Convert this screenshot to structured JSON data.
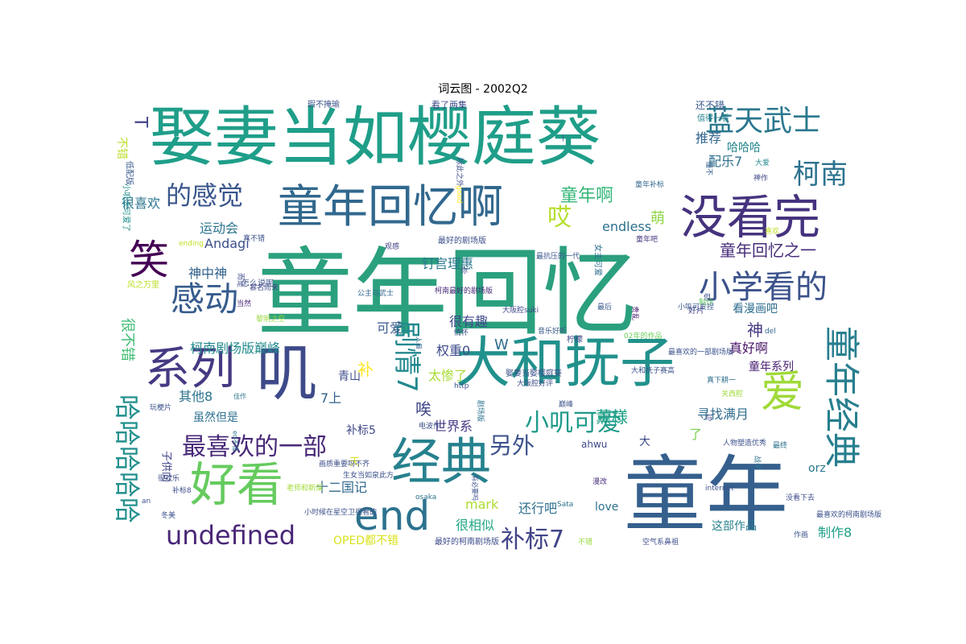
{
  "chart_data": {
    "type": "wordcloud",
    "title": "词云图 - 2002Q2",
    "words": [
      {
        "text": "童年回忆",
        "weight": 100,
        "color": "#2ba07e"
      },
      {
        "text": "娶妻当如樱庭葵",
        "weight": 78,
        "color": "#1f9e89"
      },
      {
        "text": "童年",
        "weight": 92,
        "color": "#355f8d"
      },
      {
        "text": "大和抚子",
        "weight": 64,
        "color": "#21918c"
      },
      {
        "text": "叽",
        "weight": 72,
        "color": "#3e4a89"
      },
      {
        "text": "经典",
        "weight": 58,
        "color": "#26818e"
      },
      {
        "text": "童年回忆啊",
        "weight": 54,
        "color": "#31688e"
      },
      {
        "text": "没看完",
        "weight": 52,
        "color": "#46337e"
      },
      {
        "text": "系列",
        "weight": 50,
        "color": "#443a83"
      },
      {
        "text": "好看",
        "weight": 50,
        "color": "#65cb5e"
      },
      {
        "text": "end",
        "weight": 44,
        "color": "#2c728e"
      },
      {
        "text": "笑",
        "weight": 48,
        "color": "#440154"
      },
      {
        "text": "爱",
        "weight": 50,
        "color": "#a0da39"
      },
      {
        "text": "童年经典",
        "weight": 44,
        "color": "#277f8e"
      },
      {
        "text": "感动",
        "weight": 38,
        "color": "#365c8d"
      },
      {
        "text": "小学看的",
        "weight": 36,
        "color": "#3b528b"
      },
      {
        "text": "蓝天武士",
        "weight": 32,
        "color": "#2a788e"
      },
      {
        "text": "柯南",
        "weight": 32,
        "color": "#2c728e"
      },
      {
        "text": "的感觉",
        "weight": 28,
        "color": "#39568c"
      },
      {
        "text": "undefined",
        "weight": 28,
        "color": "#482677"
      },
      {
        "text": "最喜欢的一部",
        "weight": 28,
        "color": "#482878"
      },
      {
        "text": "小叽可爱",
        "weight": 26,
        "color": "#1f9a8a"
      },
      {
        "text": "剧情7",
        "weight": 30,
        "color": "#23898e"
      },
      {
        "text": "哈哈哈哈哈",
        "weight": 28,
        "color": "#21908d"
      },
      {
        "text": "补标7",
        "weight": 28,
        "color": "#414487"
      },
      {
        "text": "另外",
        "weight": 24,
        "color": "#3b518b"
      },
      {
        "text": "哎",
        "weight": 26,
        "color": "#b5de2b"
      },
      {
        "text": "童年啊",
        "weight": 20,
        "color": "#35b779"
      },
      {
        "text": "童年回忆之一",
        "weight": 18,
        "color": "#472c7a"
      },
      {
        "text": "萌",
        "weight": 18,
        "color": "#8ed645"
      },
      {
        "text": "endless",
        "weight": 14,
        "color": "#2d718e"
      },
      {
        "text": "运动会",
        "weight": 14,
        "color": "#2c738e"
      },
      {
        "text": "Andagi",
        "weight": 14,
        "color": "#3c4f8a"
      },
      {
        "text": "钉宫理惠",
        "weight": 14,
        "color": "#2a778e"
      },
      {
        "text": "神中神",
        "weight": 14,
        "color": "#33628d"
      },
      {
        "text": "很不错",
        "weight": 16,
        "color": "#3fbc73"
      },
      {
        "text": "柯南剧场版巅峰",
        "weight": 14,
        "color": "#238a8d"
      },
      {
        "text": "可爱",
        "weight": 14,
        "color": "#38598c"
      },
      {
        "text": "很有趣",
        "weight": 14,
        "color": "#3f4889"
      },
      {
        "text": "权重0",
        "weight": 14,
        "color": "#3d4d8a"
      },
      {
        "text": "W",
        "weight": 16,
        "color": "#2f6b8e"
      },
      {
        "text": "神",
        "weight": 18,
        "color": "#453781"
      },
      {
        "text": "真好啊",
        "weight": 14,
        "color": "#481467"
      },
      {
        "text": "看漫画吧",
        "weight": 12,
        "color": "#2e6d8e"
      },
      {
        "text": "补",
        "weight": 18,
        "color": "#fde725"
      },
      {
        "text": "青山",
        "weight": 12,
        "color": "#3d4e8a"
      },
      {
        "text": "太惨了",
        "weight": 14,
        "color": "#a8db34"
      },
      {
        "text": "唉",
        "weight": 18,
        "color": "#404588"
      },
      {
        "text": "7上",
        "weight": 14,
        "color": "#33638d"
      },
      {
        "text": "其他8",
        "weight": 14,
        "color": "#2c738e"
      },
      {
        "text": "薰様",
        "weight": 18,
        "color": "#1fa187"
      },
      {
        "text": "童年系列",
        "weight": 12,
        "color": "#482173"
      },
      {
        "text": "寻找满月",
        "weight": 14,
        "color": "#2f6c8e"
      },
      {
        "text": "了",
        "weight": 14,
        "color": "#7ad151"
      },
      {
        "text": "世界系",
        "weight": 14,
        "color": "#443983"
      },
      {
        "text": "补标5",
        "weight": 12,
        "color": "#3e4989"
      },
      {
        "text": "虽然但是",
        "weight": 12,
        "color": "#2d708e"
      },
      {
        "text": "十二国记",
        "weight": 14,
        "color": "#31688e"
      },
      {
        "text": "mark",
        "weight": 14,
        "color": "#addc30"
      },
      {
        "text": "还行吧",
        "weight": 14,
        "color": "#2e6f8e"
      },
      {
        "text": "love",
        "weight": 12,
        "color": "#2d718e"
      },
      {
        "text": "orz",
        "weight": 12,
        "color": "#2a788e"
      },
      {
        "text": "很相似",
        "weight": 14,
        "color": "#22a785"
      },
      {
        "text": "这部作品",
        "weight": 12,
        "color": "#27808e"
      },
      {
        "text": "制作8",
        "weight": 14,
        "color": "#1fa088"
      },
      {
        "text": "OPED都不错",
        "weight": 12,
        "color": "#d8e219"
      },
      {
        "text": "配乐7",
        "weight": 14,
        "color": "#2d718e"
      },
      {
        "text": "推荐",
        "weight": 14,
        "color": "#32658e"
      },
      {
        "text": "哈哈哈",
        "weight": 12,
        "color": "#24868e"
      },
      {
        "text": "T",
        "weight": 20,
        "color": "#414487"
      },
      {
        "text": "很喜欢",
        "weight": 12,
        "color": "#2a768e"
      },
      {
        "text": "不错",
        "weight": 12,
        "color": "#b8de29"
      },
      {
        "text": "子供向",
        "weight": 11,
        "color": "#414487"
      },
      {
        "text": "天",
        "weight": 11,
        "color": "#d0e11c"
      },
      {
        "text": "还不错",
        "weight": 9,
        "color": "#38588c"
      },
      {
        "text": "看了两集",
        "weight": 8,
        "color": "#3e4a89"
      },
      {
        "text": "瑕不掩瑜",
        "weight": 8,
        "color": "#3b528b"
      },
      {
        "text": "值得一看",
        "weight": 8,
        "color": "#25848e"
      },
      {
        "text": "懂不",
        "weight": 7,
        "color": "#34608d"
      },
      {
        "text": "神作",
        "weight": 7,
        "color": "#3f4788"
      },
      {
        "text": "大爱",
        "weight": 7,
        "color": "#23898e"
      },
      {
        "text": "童年补标",
        "weight": 7,
        "color": "#31678e"
      },
      {
        "text": "小叽太可爱了",
        "weight": 7,
        "color": "#21908d"
      },
      {
        "text": "低配版",
        "weight": 7,
        "color": "#38598c"
      },
      {
        "text": "good",
        "weight": 7,
        "color": "#fde725"
      },
      {
        "text": "喜欢",
        "weight": 7,
        "color": "#bddf26"
      },
      {
        "text": "真不错",
        "weight": 8,
        "color": "#3c508b"
      },
      {
        "text": "怎么说呢",
        "weight": 8,
        "color": "#3b518b"
      },
      {
        "text": "观感",
        "weight": 8,
        "color": "#414487"
      },
      {
        "text": "童年吧",
        "weight": 8,
        "color": "#46327e"
      },
      {
        "text": "最好的柯南剧场版",
        "weight": 8,
        "color": "#3e4c8a"
      },
      {
        "text": "最好的剧场版",
        "weight": 8,
        "color": "#3c4f8a"
      },
      {
        "text": "最抗压的一代",
        "weight": 8,
        "color": "#3a538b"
      },
      {
        "text": "女主可爱",
        "weight": 8,
        "color": "#2e6f8e"
      },
      {
        "text": "柯南最好的剧场版",
        "weight": 8,
        "color": "#482979"
      },
      {
        "text": "公主与武士",
        "weight": 8,
        "color": "#31668e"
      },
      {
        "text": "慕名而来",
        "weight": 8,
        "color": "#3f4889"
      },
      {
        "text": "当然",
        "weight": 8,
        "color": "#482475"
      },
      {
        "text": "风之万里",
        "weight": 8,
        "color": "#bade28"
      },
      {
        "text": "ending",
        "weight": 8,
        "color": "#c2df23"
      },
      {
        "text": "最后",
        "weight": 7,
        "color": "#38588c"
      },
      {
        "text": "贵乱",
        "weight": 8,
        "color": "#481b6d"
      },
      {
        "text": "小叽可爱捏",
        "weight": 7,
        "color": "#38588c"
      },
      {
        "text": "制作",
        "weight": 8,
        "color": "#5ec962"
      },
      {
        "text": "好片",
        "weight": 8,
        "color": "#414487"
      },
      {
        "text": "del",
        "weight": 8,
        "color": "#31688e"
      },
      {
        "text": "02年的作品",
        "weight": 7,
        "color": "#6ccd5a"
      },
      {
        "text": "最喜欢的一部剧场版",
        "weight": 7,
        "color": "#3b528b"
      },
      {
        "text": "柠檬",
        "weight": 7,
        "color": "#3f4788"
      },
      {
        "text": "音乐好听",
        "weight": 8,
        "color": "#38598c"
      },
      {
        "text": "大阪腔suki",
        "weight": 8,
        "color": "#3f4889"
      },
      {
        "text": "娶妻当娶樱庭葵",
        "weight": 8,
        "color": "#3b528b"
      },
      {
        "text": "情怀",
        "weight": 8,
        "color": "#3d4e8a"
      },
      {
        "text": "人兽",
        "weight": 7,
        "color": "#33638d"
      },
      {
        "text": "大和抚子赛高",
        "weight": 7,
        "color": "#3a538b"
      },
      {
        "text": "真下耕一",
        "weight": 8,
        "color": "#2e6e8e"
      },
      {
        "text": "关西腔",
        "weight": 8,
        "color": "#9fda3a"
      },
      {
        "text": "巅峰",
        "weight": 7,
        "color": "#3b528b"
      },
      {
        "text": "大阪腔好评",
        "weight": 8,
        "color": "#3d4e8a"
      },
      {
        "text": "http",
        "weight": 7,
        "color": "#3a548c"
      },
      {
        "text": "剧场版",
        "weight": 7,
        "color": "#2c728e"
      },
      {
        "text": "与",
        "weight": 7,
        "color": "#424086"
      },
      {
        "text": "人物塑造优秀",
        "weight": 8,
        "color": "#3b528b"
      },
      {
        "text": "最终",
        "weight": 8,
        "color": "#2d708e"
      },
      {
        "text": "战争",
        "weight": 7,
        "color": "#2c738e"
      },
      {
        "text": "漫改",
        "weight": 7,
        "color": "#472f7d"
      },
      {
        "text": "电波作",
        "weight": 8,
        "color": "#3c4f8a"
      },
      {
        "text": "老师和新保",
        "weight": 7,
        "color": "#a2da37"
      },
      {
        "text": "生女当如泉此方",
        "weight": 8,
        "color": "#3b528b"
      },
      {
        "text": "有必要吗",
        "weight": 8,
        "color": "#3c508b"
      },
      {
        "text": "画质重要吗不齐",
        "weight": 7,
        "color": "#3d4e8a"
      },
      {
        "text": "osaka",
        "weight": 7,
        "color": "#2c728e"
      },
      {
        "text": "Sata",
        "weight": 7,
        "color": "#2c728e"
      },
      {
        "text": "internet",
        "weight": 8,
        "color": "#3b528b"
      },
      {
        "text": "没看下去",
        "weight": 8,
        "color": "#3e4a89"
      },
      {
        "text": "最喜欢的柯南剧场版",
        "weight": 8,
        "color": "#3b528b"
      },
      {
        "text": "作画",
        "weight": 8,
        "color": "#3a538b"
      },
      {
        "text": "不错",
        "weight": 7,
        "color": "#9bd93c"
      },
      {
        "text": "空气系鼻祖",
        "weight": 8,
        "color": "#3d4e8a"
      },
      {
        "text": "小时候在星空卫视看的",
        "weight": 8,
        "color": "#3b528b"
      },
      {
        "text": "很欢乐",
        "weight": 8,
        "color": "#3d4e8a"
      },
      {
        "text": "玩梗片",
        "weight": 8,
        "color": "#3b528b"
      },
      {
        "text": "佳作",
        "weight": 8,
        "color": "#2a788e"
      },
      {
        "text": "补标8",
        "weight": 7,
        "color": "#3d4e8a"
      },
      {
        "text": "an",
        "weight": 7,
        "color": "#3b528b"
      },
      {
        "text": "冬美",
        "weight": 8,
        "color": "#3b528b"
      },
      {
        "text": "黎明之空",
        "weight": 7,
        "color": "#9bd93c"
      },
      {
        "text": "你",
        "weight": 7,
        "color": "#3e4a89"
      },
      {
        "text": "除此之外",
        "weight": 8,
        "color": "#3b528b"
      },
      {
        "text": "而是",
        "weight": 7,
        "color": "#3e4a89"
      },
      {
        "text": "但",
        "weight": 7,
        "color": "#3e4a89"
      },
      {
        "text": "大",
        "weight": 8,
        "color": "#3e4a89"
      },
      {
        "text": "一",
        "weight": 14,
        "color": "#3b528b"
      },
      {
        "text": "ed不错",
        "weight": 7,
        "color": "#2c728e"
      },
      {
        "text": "ahwu",
        "weight": 6,
        "color": "#3e4a89"
      },
      {
        "text": "卟",
        "weight": 12,
        "color": "#b5de2b"
      }
    ]
  }
}
